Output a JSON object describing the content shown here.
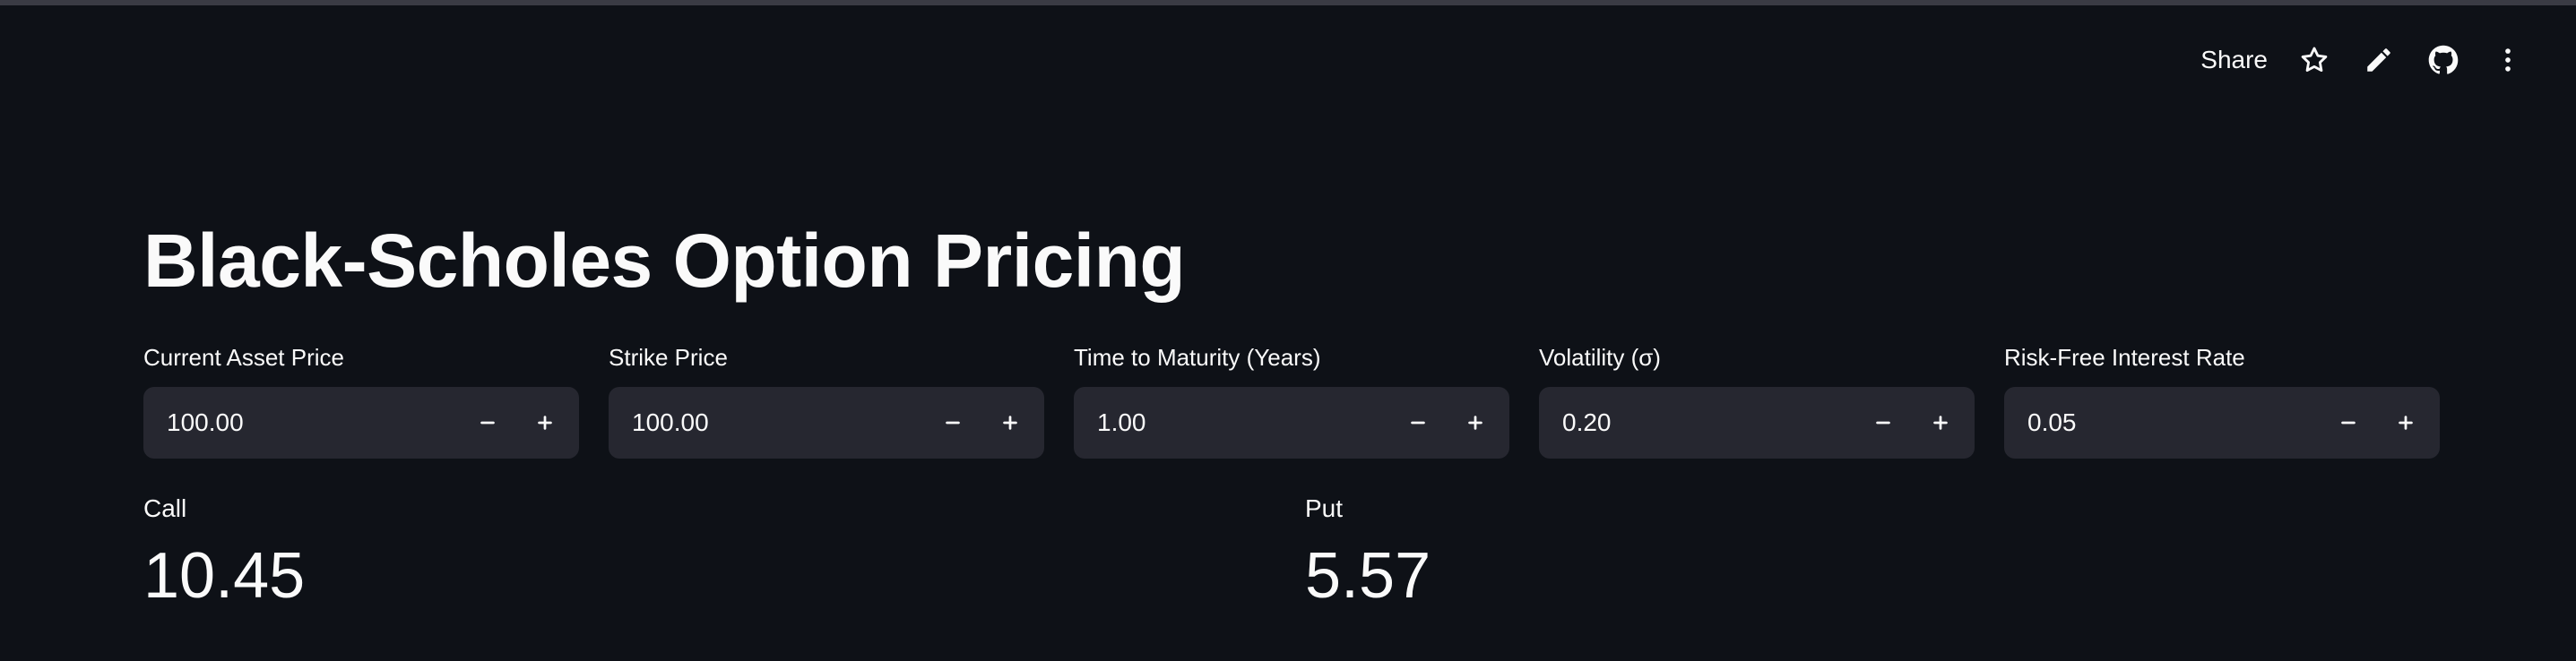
{
  "header": {
    "share_label": "Share",
    "icons": [
      "star-icon",
      "pencil-icon",
      "github-icon",
      "more-vertical-icon"
    ]
  },
  "main": {
    "title": "Black-Scholes Option Pricing",
    "inputs": [
      {
        "label": "Current Asset Price",
        "value": "100.00"
      },
      {
        "label": "Strike Price",
        "value": "100.00"
      },
      {
        "label": "Time to Maturity (Years)",
        "value": "1.00"
      },
      {
        "label": "Volatility (σ)",
        "value": "0.20"
      },
      {
        "label": "Risk-Free Interest Rate",
        "value": "0.05"
      }
    ],
    "metrics": {
      "call": {
        "label": "Call",
        "value": "10.45"
      },
      "put": {
        "label": "Put",
        "value": "5.57"
      }
    }
  },
  "colors": {
    "background": "#0e1117",
    "input_background": "#262730",
    "text": "#fafafa"
  }
}
